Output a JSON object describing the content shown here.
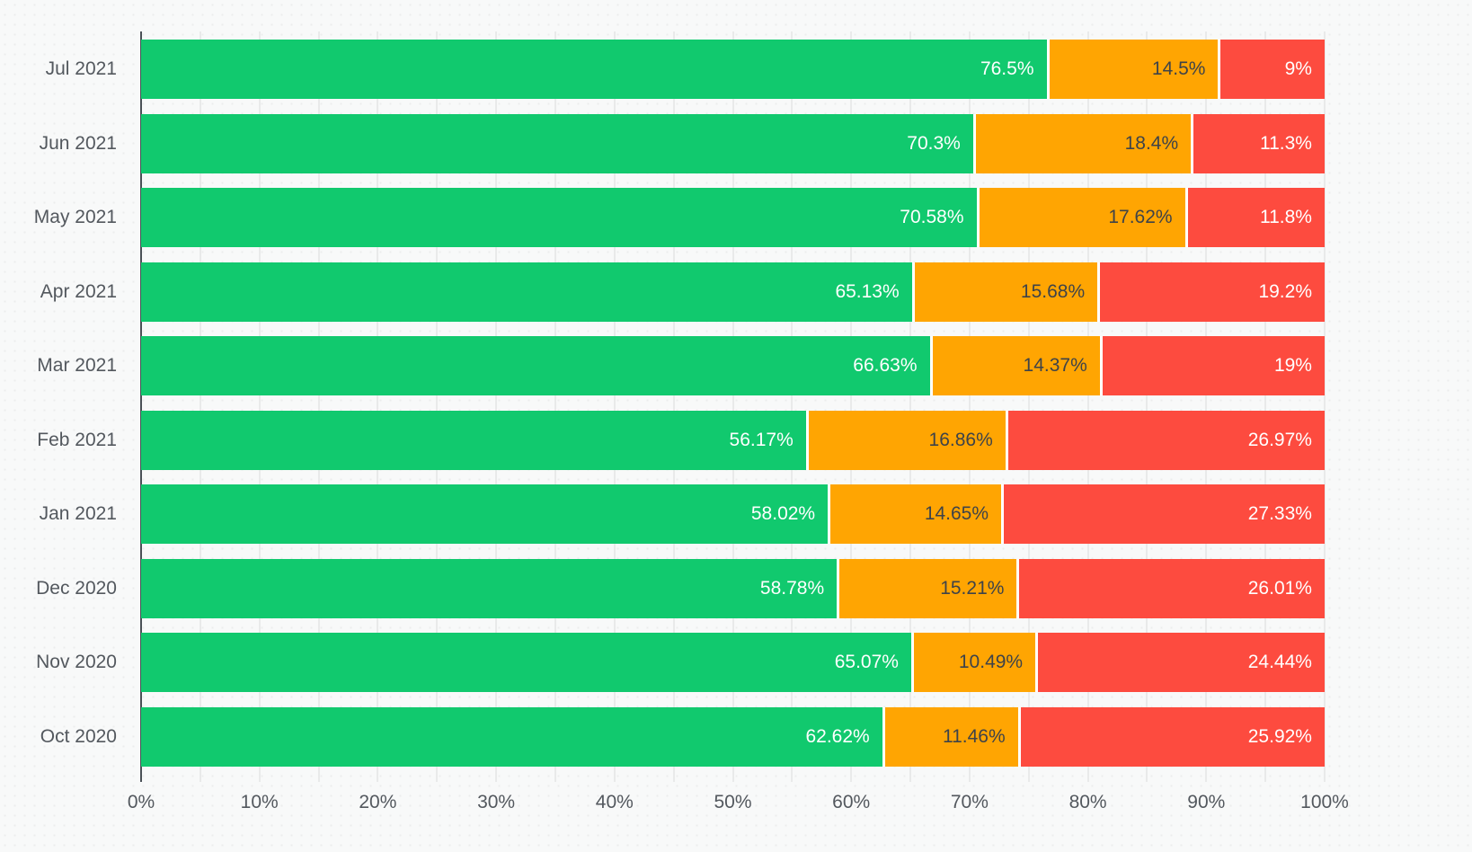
{
  "chart_data": {
    "type": "bar",
    "orientation": "horizontal",
    "stacked": true,
    "title": "",
    "legend": false,
    "grid": true,
    "categories": [
      "Jul 2021",
      "Jun 2021",
      "May 2021",
      "Apr 2021",
      "Mar 2021",
      "Feb 2021",
      "Jan 2021",
      "Dec 2020",
      "Nov 2020",
      "Oct 2020"
    ],
    "series": [
      {
        "name": "green",
        "color": "#11c96e",
        "label_color": "#ffffff",
        "values": [
          76.5,
          70.3,
          70.58,
          65.13,
          66.63,
          56.17,
          58.02,
          58.78,
          65.07,
          62.62
        ],
        "labels": [
          "76.5%",
          "70.3%",
          "70.58%",
          "65.13%",
          "66.63%",
          "56.17%",
          "58.02%",
          "58.78%",
          "65.07%",
          "62.62%"
        ]
      },
      {
        "name": "orange",
        "color": "#ffa502",
        "label_color": "#3e4349",
        "values": [
          14.5,
          18.4,
          17.62,
          15.68,
          14.37,
          16.86,
          14.65,
          15.21,
          10.49,
          11.46
        ],
        "labels": [
          "14.5%",
          "18.4%",
          "17.62%",
          "15.68%",
          "14.37%",
          "16.86%",
          "14.65%",
          "15.21%",
          "10.49%",
          "11.46%"
        ]
      },
      {
        "name": "red",
        "color": "#fd4b3f",
        "label_color": "#ffffff",
        "values": [
          9,
          11.3,
          11.8,
          19.2,
          19,
          26.97,
          27.33,
          26.01,
          24.44,
          25.92
        ],
        "labels": [
          "9%",
          "11.3%",
          "11.8%",
          "19.2%",
          "19%",
          "26.97%",
          "27.33%",
          "26.01%",
          "24.44%",
          "25.92%"
        ]
      }
    ],
    "x_axis": {
      "min": 0,
      "max": 100,
      "tick_labels": [
        "0%",
        "10%",
        "20%",
        "30%",
        "40%",
        "50%",
        "60%",
        "70%",
        "80%",
        "90%",
        "100%"
      ],
      "minor_gridline_step_percent": 5
    }
  },
  "colors": {
    "background": "#f8f9f9",
    "axis_line": "#4a5056",
    "gridline": "#e9eaea",
    "axis_label_text": "#53585e",
    "segment_separator": "#ffffff"
  }
}
